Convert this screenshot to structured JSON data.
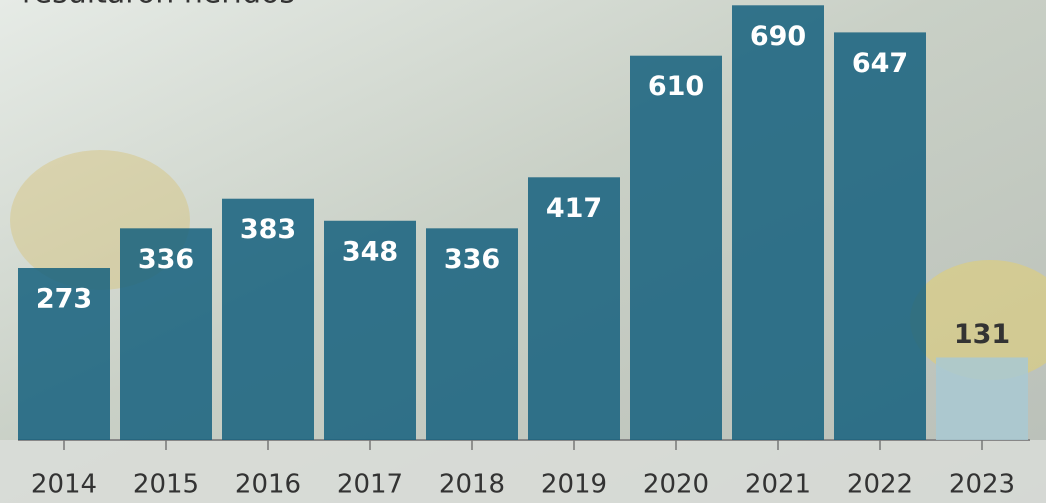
{
  "chart_data": {
    "type": "bar",
    "title": "resultaron heridos",
    "categories": [
      "2014",
      "2015",
      "2016",
      "2017",
      "2018",
      "2019",
      "2020",
      "2021",
      "2022",
      "2023"
    ],
    "values": [
      273,
      336,
      383,
      348,
      336,
      417,
      610,
      690,
      647,
      131
    ],
    "colors": [
      "#15607e",
      "#15607e",
      "#15607e",
      "#15607e",
      "#15607e",
      "#15607e",
      "#15607e",
      "#15607e",
      "#15607e",
      "#a9c9d2"
    ],
    "label_colors": [
      "#ffffff",
      "#ffffff",
      "#ffffff",
      "#ffffff",
      "#ffffff",
      "#ffffff",
      "#ffffff",
      "#ffffff",
      "#ffffff",
      "#333333"
    ],
    "ylim": [
      0,
      700
    ]
  }
}
